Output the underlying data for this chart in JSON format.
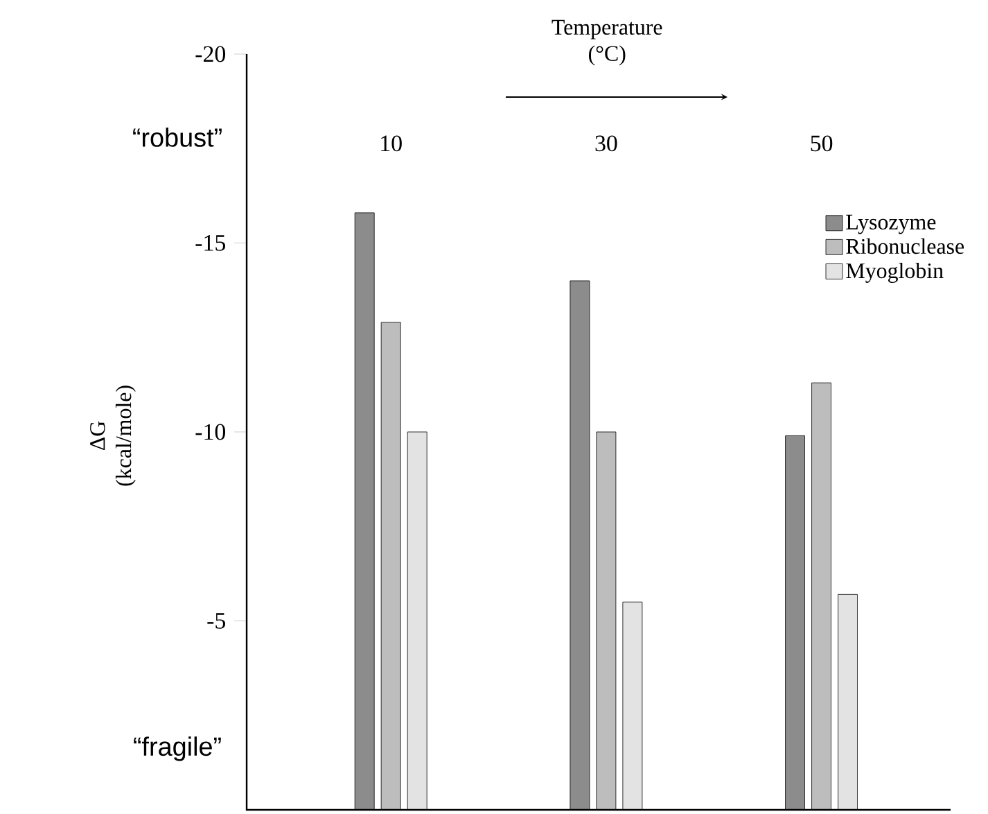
{
  "chart_data": {
    "type": "bar",
    "xlabel": "Temperature (°C)",
    "ylabel": "ΔG (kcal/mole)",
    "categories": [
      "10",
      "30",
      "50"
    ],
    "series": [
      {
        "name": "Lysozyme",
        "color": "#8c8c8c",
        "values": [
          -15.8,
          -14.0,
          -9.9
        ]
      },
      {
        "name": "Ribonuclease",
        "color": "#bdbdbd",
        "values": [
          -12.9,
          -10.0,
          -11.3
        ]
      },
      {
        "name": "Myoglobin",
        "color": "#e3e3e3",
        "values": [
          -10.0,
          -5.5,
          -5.7
        ]
      }
    ],
    "ylim": [
      0,
      -20
    ],
    "yticks": [
      -20,
      -15,
      -10,
      -5
    ],
    "legend": "top right",
    "annotations": [
      "“robust”",
      "“fragile”"
    ]
  }
}
